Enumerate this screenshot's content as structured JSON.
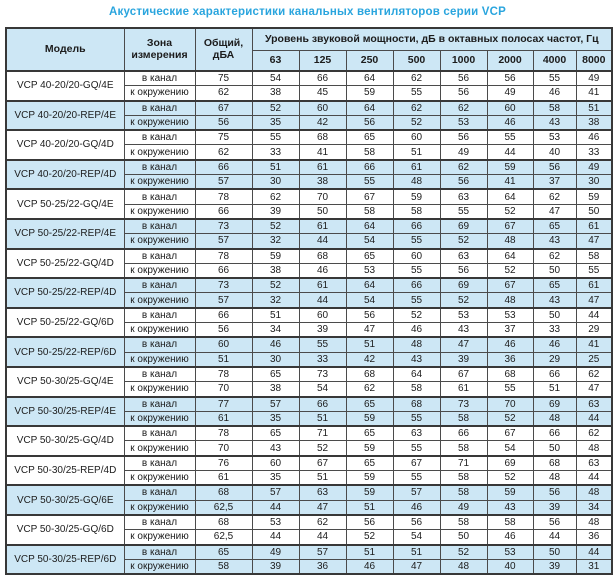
{
  "title": "Акустические характеристики канальных вентиляторов  серии VCP",
  "colors": {
    "accent_blue": "#2aa5de",
    "row_shade": "#cde7f5",
    "header_bg": "#cde7f5",
    "border": "#4b4b4b",
    "border_heavy": "#383838",
    "text": "#1c1c1c"
  },
  "table": {
    "col_model": "Модель",
    "col_zone": "Зона измерения",
    "col_total": "Общий, дБА",
    "col_freq_group": "Уровень звуковой мощности, дБ в октавных полосах частот, Гц",
    "frequencies": [
      "63",
      "125",
      "250",
      "500",
      "1000",
      "2000",
      "4000",
      "8000"
    ],
    "zone_in_duct": "в канал",
    "zone_to_surroundings": "к окружению",
    "rows": [
      {
        "model": "VCP 40-20/20-GQ/4E",
        "shaded": false,
        "in_duct": {
          "total": "75",
          "bands": [
            "54",
            "66",
            "64",
            "62",
            "56",
            "56",
            "55",
            "49"
          ]
        },
        "to_surroundings": {
          "total": "62",
          "bands": [
            "38",
            "45",
            "59",
            "55",
            "56",
            "49",
            "46",
            "41"
          ]
        }
      },
      {
        "model": "VCP 40-20/20-REP/4E",
        "shaded": true,
        "in_duct": {
          "total": "67",
          "bands": [
            "52",
            "60",
            "64",
            "62",
            "62",
            "60",
            "58",
            "51"
          ]
        },
        "to_surroundings": {
          "total": "56",
          "bands": [
            "35",
            "42",
            "56",
            "52",
            "53",
            "46",
            "43",
            "38"
          ]
        }
      },
      {
        "model": "VCP 40-20/20-GQ/4D",
        "shaded": false,
        "in_duct": {
          "total": "75",
          "bands": [
            "55",
            "68",
            "65",
            "60",
            "56",
            "55",
            "53",
            "46"
          ]
        },
        "to_surroundings": {
          "total": "62",
          "bands": [
            "33",
            "41",
            "58",
            "51",
            "49",
            "44",
            "40",
            "33"
          ]
        }
      },
      {
        "model": "VCP 40-20/20-REP/4D",
        "shaded": true,
        "in_duct": {
          "total": "66",
          "bands": [
            "51",
            "61",
            "66",
            "61",
            "62",
            "59",
            "56",
            "49"
          ]
        },
        "to_surroundings": {
          "total": "57",
          "bands": [
            "30",
            "38",
            "55",
            "48",
            "56",
            "41",
            "37",
            "30"
          ]
        }
      },
      {
        "model": "VCP 50-25/22-GQ/4E",
        "shaded": false,
        "in_duct": {
          "total": "78",
          "bands": [
            "62",
            "70",
            "67",
            "59",
            "63",
            "64",
            "62",
            "59"
          ]
        },
        "to_surroundings": {
          "total": "66",
          "bands": [
            "39",
            "50",
            "58",
            "58",
            "55",
            "52",
            "47",
            "50"
          ]
        }
      },
      {
        "model": "VCP 50-25/22-REP/4E",
        "shaded": true,
        "in_duct": {
          "total": "73",
          "bands": [
            "52",
            "61",
            "64",
            "66",
            "69",
            "67",
            "65",
            "61"
          ]
        },
        "to_surroundings": {
          "total": "57",
          "bands": [
            "32",
            "44",
            "54",
            "55",
            "52",
            "48",
            "43",
            "47"
          ]
        }
      },
      {
        "model": "VCP 50-25/22-GQ/4D",
        "shaded": false,
        "in_duct": {
          "total": "78",
          "bands": [
            "59",
            "68",
            "65",
            "60",
            "63",
            "64",
            "62",
            "58"
          ]
        },
        "to_surroundings": {
          "total": "66",
          "bands": [
            "38",
            "46",
            "53",
            "55",
            "56",
            "52",
            "50",
            "55"
          ]
        }
      },
      {
        "model": "VCP 50-25/22-REP/4D",
        "shaded": true,
        "in_duct": {
          "total": "73",
          "bands": [
            "52",
            "61",
            "64",
            "66",
            "69",
            "67",
            "65",
            "61"
          ]
        },
        "to_surroundings": {
          "total": "57",
          "bands": [
            "32",
            "44",
            "54",
            "55",
            "52",
            "48",
            "43",
            "47"
          ]
        }
      },
      {
        "model": "VCP 50-25/22-GQ/6D",
        "shaded": false,
        "in_duct": {
          "total": "66",
          "bands": [
            "51",
            "60",
            "56",
            "52",
            "53",
            "53",
            "50",
            "44"
          ]
        },
        "to_surroundings": {
          "total": "56",
          "bands": [
            "34",
            "39",
            "47",
            "46",
            "43",
            "37",
            "33",
            "29"
          ]
        }
      },
      {
        "model": "VCP 50-25/22-REP/6D",
        "shaded": true,
        "in_duct": {
          "total": "60",
          "bands": [
            "46",
            "55",
            "51",
            "48",
            "47",
            "46",
            "46",
            "41"
          ]
        },
        "to_surroundings": {
          "total": "51",
          "bands": [
            "30",
            "33",
            "42",
            "43",
            "39",
            "36",
            "29",
            "25"
          ]
        }
      },
      {
        "model": "VCP 50-30/25-GQ/4E",
        "shaded": false,
        "in_duct": {
          "total": "78",
          "bands": [
            "65",
            "73",
            "68",
            "64",
            "67",
            "68",
            "66",
            "62"
          ]
        },
        "to_surroundings": {
          "total": "70",
          "bands": [
            "38",
            "54",
            "62",
            "58",
            "61",
            "55",
            "51",
            "47"
          ]
        }
      },
      {
        "model": "VCP 50-30/25-REP/4E",
        "shaded": true,
        "in_duct": {
          "total": "77",
          "bands": [
            "57",
            "66",
            "65",
            "68",
            "73",
            "70",
            "69",
            "63"
          ]
        },
        "to_surroundings": {
          "total": "61",
          "bands": [
            "35",
            "51",
            "59",
            "55",
            "58",
            "52",
            "48",
            "44"
          ]
        }
      },
      {
        "model": "VCP 50-30/25-GQ/4D",
        "shaded": false,
        "in_duct": {
          "total": "78",
          "bands": [
            "65",
            "71",
            "65",
            "63",
            "66",
            "67",
            "66",
            "62"
          ]
        },
        "to_surroundings": {
          "total": "70",
          "bands": [
            "43",
            "52",
            "59",
            "55",
            "58",
            "54",
            "50",
            "48"
          ]
        }
      },
      {
        "model": "VCP 50-30/25-REP/4D",
        "shaded": false,
        "in_duct": {
          "total": "76",
          "bands": [
            "60",
            "67",
            "65",
            "67",
            "71",
            "69",
            "68",
            "63"
          ]
        },
        "to_surroundings": {
          "total": "61",
          "bands": [
            "35",
            "51",
            "59",
            "55",
            "58",
            "52",
            "48",
            "44"
          ]
        }
      },
      {
        "model": "VCP 50-30/25-GQ/6E",
        "shaded": true,
        "in_duct": {
          "total": "68",
          "bands": [
            "57",
            "63",
            "59",
            "57",
            "58",
            "59",
            "56",
            "48"
          ]
        },
        "to_surroundings": {
          "total": "62,5",
          "bands": [
            "44",
            "47",
            "51",
            "46",
            "49",
            "43",
            "39",
            "34"
          ]
        }
      },
      {
        "model": "VCP 50-30/25-GQ/6D",
        "shaded": false,
        "in_duct": {
          "total": "68",
          "bands": [
            "53",
            "62",
            "56",
            "56",
            "58",
            "58",
            "56",
            "48"
          ]
        },
        "to_surroundings": {
          "total": "62,5",
          "bands": [
            "44",
            "44",
            "52",
            "54",
            "50",
            "46",
            "44",
            "36"
          ]
        }
      },
      {
        "model": "VCP 50-30/25-REP/6D",
        "shaded": true,
        "in_duct": {
          "total": "65",
          "bands": [
            "49",
            "57",
            "51",
            "51",
            "52",
            "53",
            "50",
            "44"
          ]
        },
        "to_surroundings": {
          "total": "58",
          "bands": [
            "39",
            "36",
            "46",
            "47",
            "48",
            "40",
            "39",
            "31"
          ]
        }
      }
    ]
  }
}
